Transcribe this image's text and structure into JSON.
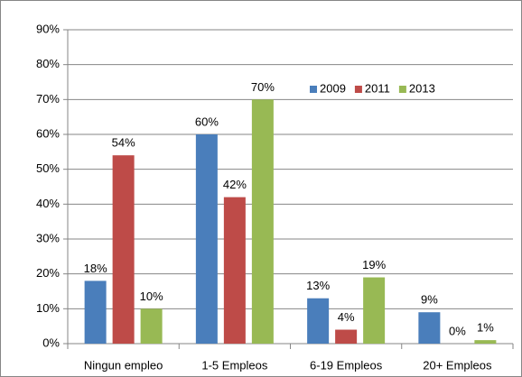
{
  "chart_data": {
    "type": "bar",
    "categories": [
      "Ningun empleo",
      "1-5 Empleos",
      "6-19 Empleos",
      "20+ Empleos"
    ],
    "series": [
      {
        "name": "2009",
        "color": "#4a7ebb",
        "values": [
          18,
          60,
          13,
          9
        ],
        "value_labels": [
          "18%",
          "60%",
          "13%",
          "9%"
        ]
      },
      {
        "name": "2011",
        "color": "#be4b48",
        "values": [
          54,
          42,
          4,
          0
        ],
        "value_labels": [
          "54%",
          "42%",
          "4%",
          "0%"
        ]
      },
      {
        "name": "2013",
        "color": "#98b954",
        "values": [
          10,
          70,
          19,
          1
        ],
        "value_labels": [
          "10%",
          "70%",
          "19%",
          "1%"
        ]
      }
    ],
    "ylim": [
      0,
      90
    ],
    "yticks": [
      {
        "value": 0,
        "label": "0%"
      },
      {
        "value": 10,
        "label": "10%"
      },
      {
        "value": 20,
        "label": "20%"
      },
      {
        "value": 30,
        "label": "30%"
      },
      {
        "value": 40,
        "label": "40%"
      },
      {
        "value": 50,
        "label": "50%"
      },
      {
        "value": 60,
        "label": "60%"
      },
      {
        "value": 70,
        "label": "70%"
      },
      {
        "value": 80,
        "label": "80%"
      },
      {
        "value": 90,
        "label": "90%"
      }
    ],
    "grid": true,
    "legend": "top-right"
  }
}
